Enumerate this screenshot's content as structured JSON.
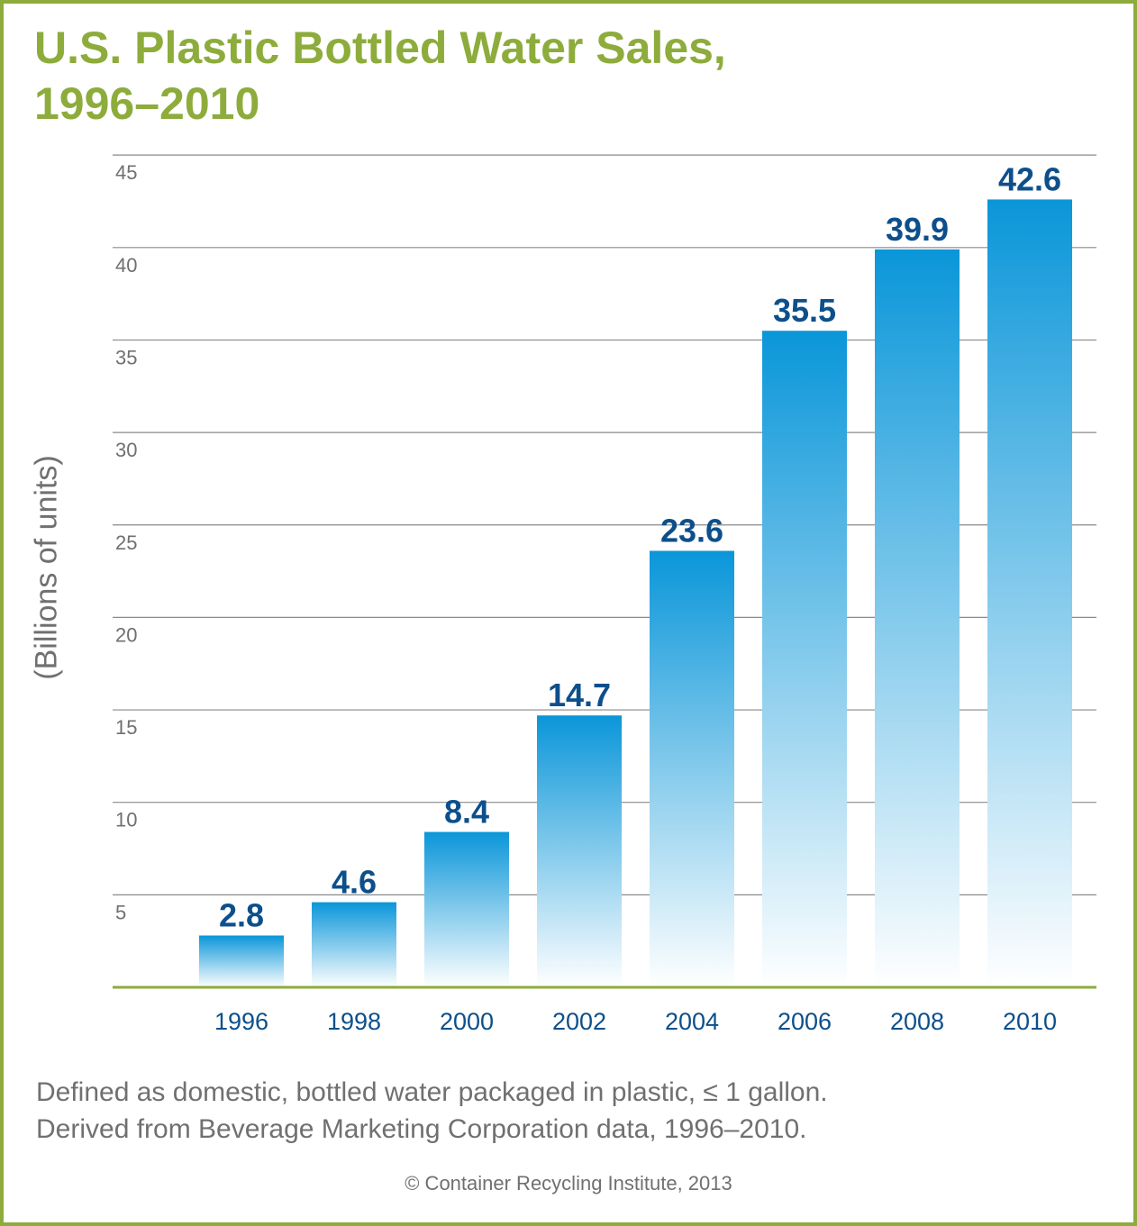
{
  "title_line1": "U.S. Plastic Bottled Water Sales,",
  "title_line2": "1996–2010",
  "note_line1": "Defined as domestic, bottled water packaged in plastic, ≤ 1 gallon.",
  "note_line2": "Derived from Beverage Marketing Corporation data, 1996–2010.",
  "copyright": "© Container Recycling Institute, 2013",
  "colors": {
    "title": "#8dac3c",
    "axis": "#8dac3c",
    "bar_top": "#0a96d9",
    "bar_bottom": "#ffffff",
    "value_label": "#0d4f8b",
    "tick_label": "#0d4f8b",
    "y_tick_label": "#707070",
    "grid": "#8a8a8a"
  },
  "chart_data": {
    "type": "bar",
    "title": "U.S. Plastic Bottled Water Sales, 1996–2010",
    "xlabel": "",
    "ylabel": "(Billions of units)",
    "categories": [
      "1996",
      "1998",
      "2000",
      "2002",
      "2004",
      "2006",
      "2008",
      "2010"
    ],
    "values": [
      2.8,
      4.6,
      8.4,
      14.7,
      23.6,
      35.5,
      39.9,
      42.6
    ],
    "value_labels": [
      "2.8",
      "4.6",
      "8.4",
      "14.7",
      "23.6",
      "35.5",
      "39.9",
      "42.6"
    ],
    "yticks": [
      5,
      10,
      15,
      20,
      25,
      30,
      35,
      40,
      45
    ],
    "ylim": [
      0,
      45
    ],
    "grid": true,
    "legend": "none"
  }
}
